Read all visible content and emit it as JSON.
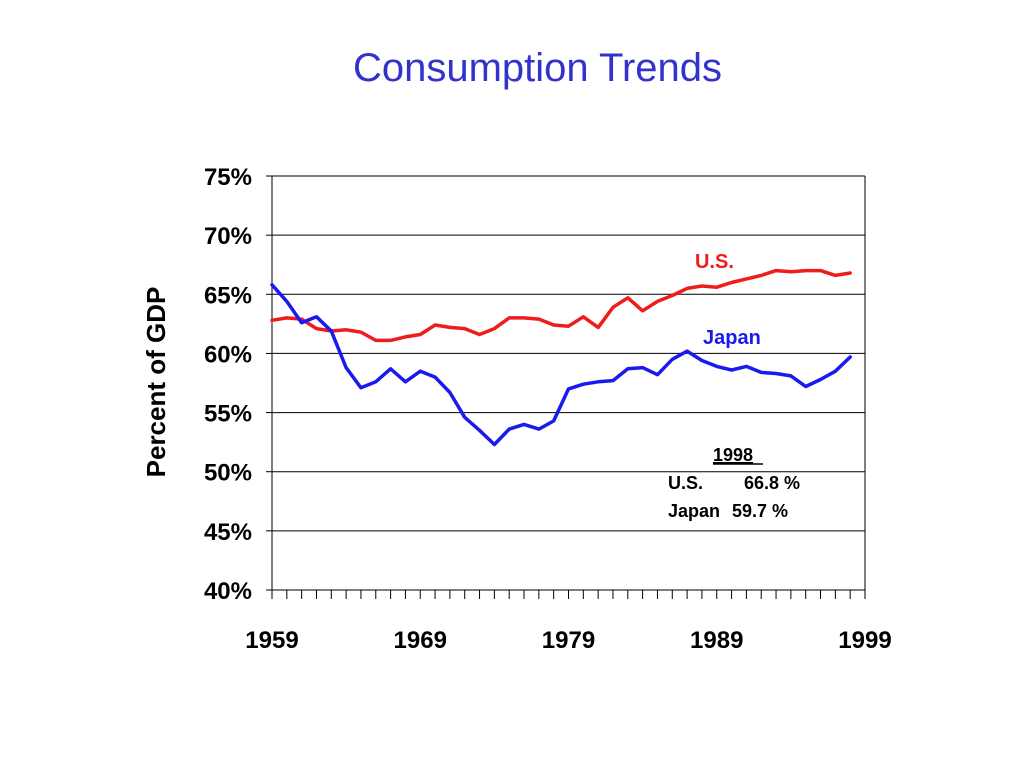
{
  "slide": {
    "title": "Consumption Trends"
  },
  "colors": {
    "title": "#3333cc",
    "us": "#ee1c1c",
    "japan": "#1a1aee"
  },
  "chart_data": {
    "type": "line",
    "title": "",
    "xlabel": "",
    "ylabel": "Percent of GDP",
    "xlim": [
      1959,
      1999
    ],
    "ylim": [
      40,
      75
    ],
    "grid": true,
    "y_ticks": [
      "40%",
      "45%",
      "50%",
      "55%",
      "60%",
      "65%",
      "70%",
      "75%"
    ],
    "x_ticks": [
      "1959",
      "1969",
      "1979",
      "1989",
      "1999"
    ],
    "x": [
      1959,
      1960,
      1961,
      1962,
      1963,
      1964,
      1965,
      1966,
      1967,
      1968,
      1969,
      1970,
      1971,
      1972,
      1973,
      1974,
      1975,
      1976,
      1977,
      1978,
      1979,
      1980,
      1981,
      1982,
      1983,
      1984,
      1985,
      1986,
      1987,
      1988,
      1989,
      1990,
      1991,
      1992,
      1993,
      1994,
      1995,
      1996,
      1997,
      1998
    ],
    "series": [
      {
        "name": "U.S.",
        "color": "#ee1c1c",
        "values": [
          62.8,
          63.0,
          62.9,
          62.1,
          61.9,
          62.0,
          61.8,
          61.1,
          61.1,
          61.4,
          61.6,
          62.4,
          62.2,
          62.1,
          61.6,
          62.1,
          63.0,
          63.0,
          62.9,
          62.4,
          62.3,
          63.1,
          62.2,
          63.9,
          64.7,
          63.6,
          64.4,
          64.9,
          65.5,
          65.7,
          65.6,
          66.0,
          66.3,
          66.6,
          67.0,
          66.9,
          67.0,
          67.0,
          66.6,
          66.8
        ]
      },
      {
        "name": "Japan",
        "color": "#1a1aee",
        "values": [
          65.8,
          64.4,
          62.6,
          63.1,
          61.9,
          58.8,
          57.1,
          57.6,
          58.7,
          57.6,
          58.5,
          58.0,
          56.7,
          54.6,
          53.5,
          52.3,
          53.6,
          54.0,
          53.6,
          54.3,
          57.0,
          57.4,
          57.6,
          57.7,
          58.7,
          58.8,
          58.2,
          59.5,
          60.2,
          59.4,
          58.9,
          58.6,
          58.9,
          58.4,
          58.3,
          58.1,
          57.2,
          57.8,
          58.5,
          59.7
        ]
      }
    ],
    "annotations": {
      "header": "1998",
      "rows": [
        {
          "label": "U.S.",
          "value": "66.8 %"
        },
        {
          "label": "Japan",
          "value": "59.7 %"
        }
      ]
    }
  }
}
